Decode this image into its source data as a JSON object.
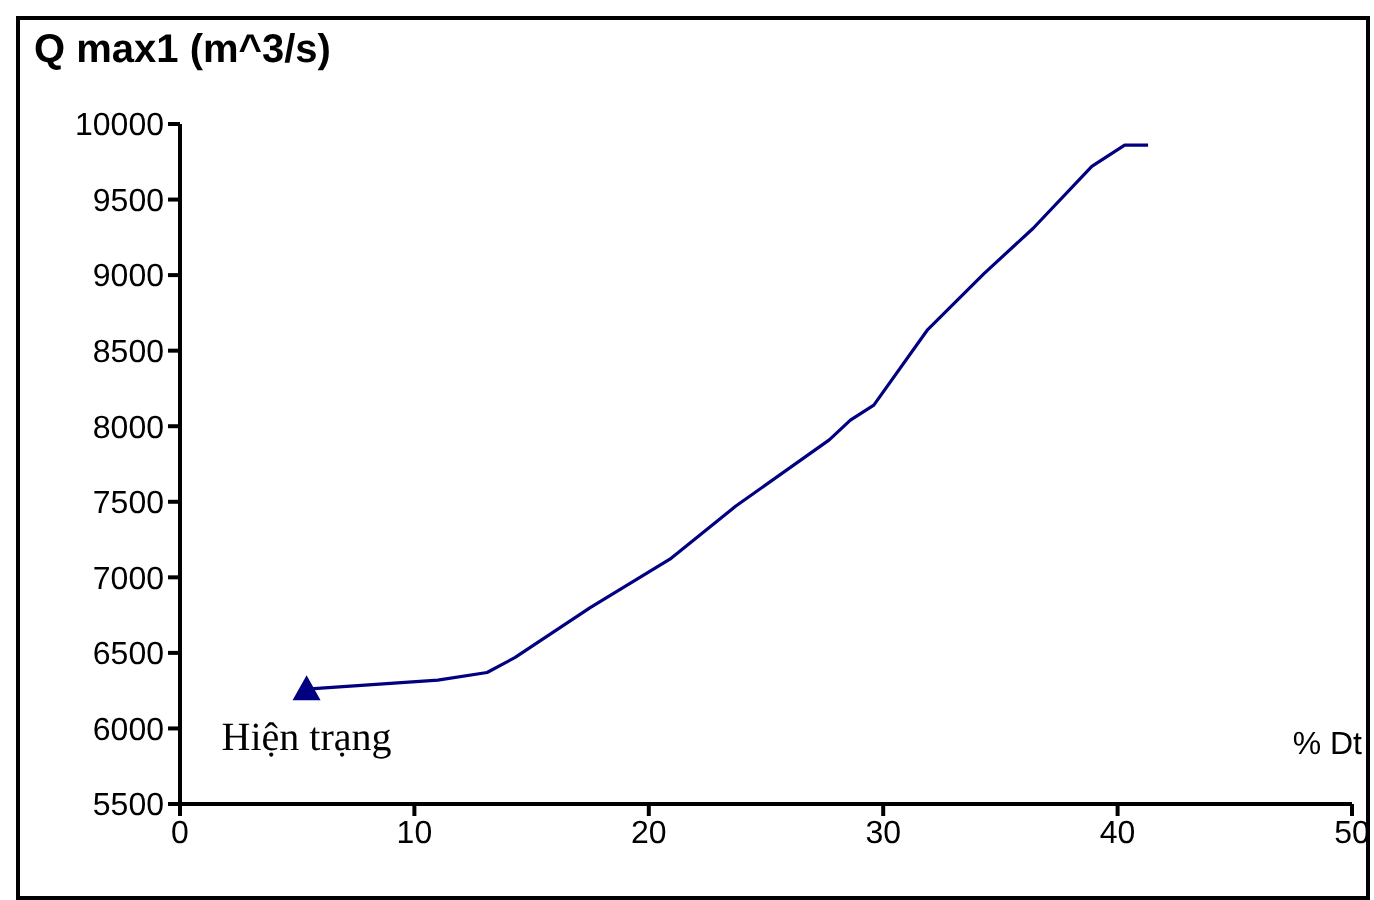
{
  "chart_data": {
    "type": "line",
    "ylabel": "Q max1 (m^3/s)",
    "xlabel": "% Dt",
    "xlim": [
      0,
      50
    ],
    "xticks": [
      0,
      10,
      20,
      30,
      40,
      50
    ],
    "ylim": [
      5500,
      10000
    ],
    "yticks": [
      5500,
      6000,
      6500,
      7000,
      7500,
      8000,
      8500,
      9000,
      9500,
      10000
    ],
    "grid": false,
    "series": [
      {
        "color": "#000080",
        "marker": "none",
        "x": [
          5.4,
          11.0,
          13.1,
          14.3,
          17.5,
          20.9,
          23.7,
          27.7,
          28.6,
          29.6,
          31.9,
          34.3,
          36.4,
          38.9,
          40.3,
          41.3
        ],
        "values": [
          6260,
          6320,
          6370,
          6470,
          6800,
          7120,
          7470,
          7910,
          8040,
          8140,
          8640,
          9010,
          9310,
          9720,
          9860,
          9860
        ]
      },
      {
        "type": "scatter",
        "color": "#000080",
        "marker": "triangle",
        "x": [
          5.4
        ],
        "values": [
          6260
        ]
      }
    ],
    "annotations": [
      {
        "text": "Hiện trạng",
        "x": 5.4,
        "y": 6260
      }
    ]
  }
}
